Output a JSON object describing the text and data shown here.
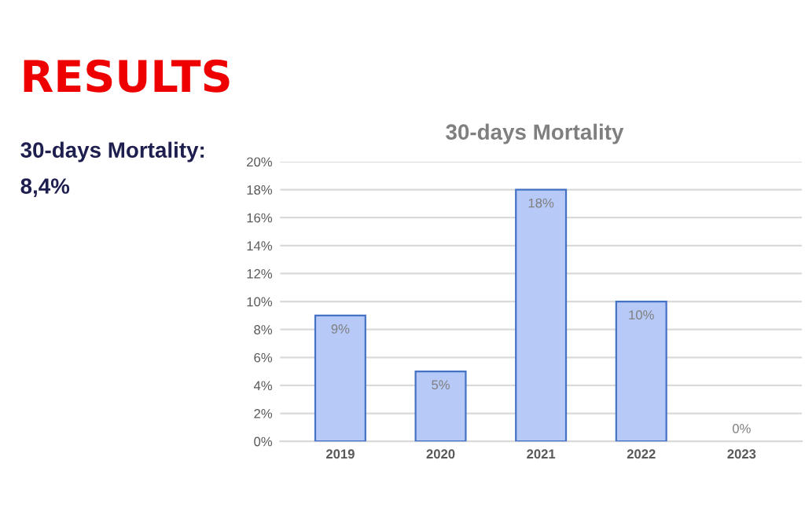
{
  "chart_data": {
    "type": "bar",
    "title": "30-days Mortality",
    "categories": [
      "2019",
      "2020",
      "2021",
      "2022",
      "2023"
    ],
    "values": [
      9,
      5,
      18,
      10,
      0
    ],
    "value_labels": [
      "9%",
      "5%",
      "18%",
      "10%",
      "0%"
    ],
    "color": "#b7c9f7",
    "ylim": [
      0,
      20
    ],
    "yticks": [
      {
        "value": 0,
        "label": "0%"
      },
      {
        "value": 2,
        "label": "2%"
      },
      {
        "value": 4,
        "label": "4%"
      },
      {
        "value": 6,
        "label": "6%"
      },
      {
        "value": 8,
        "label": "8%"
      },
      {
        "value": 10,
        "label": "10%"
      },
      {
        "value": 12,
        "label": "12%"
      },
      {
        "value": 14,
        "label": "14%"
      },
      {
        "value": 16,
        "label": "16%"
      },
      {
        "value": 18,
        "label": "18%"
      },
      {
        "value": 20,
        "label": "20%"
      }
    ],
    "grid": "y",
    "annotations": [
      "RESULTS",
      "30-days Mortality:",
      "8,4%"
    ]
  }
}
